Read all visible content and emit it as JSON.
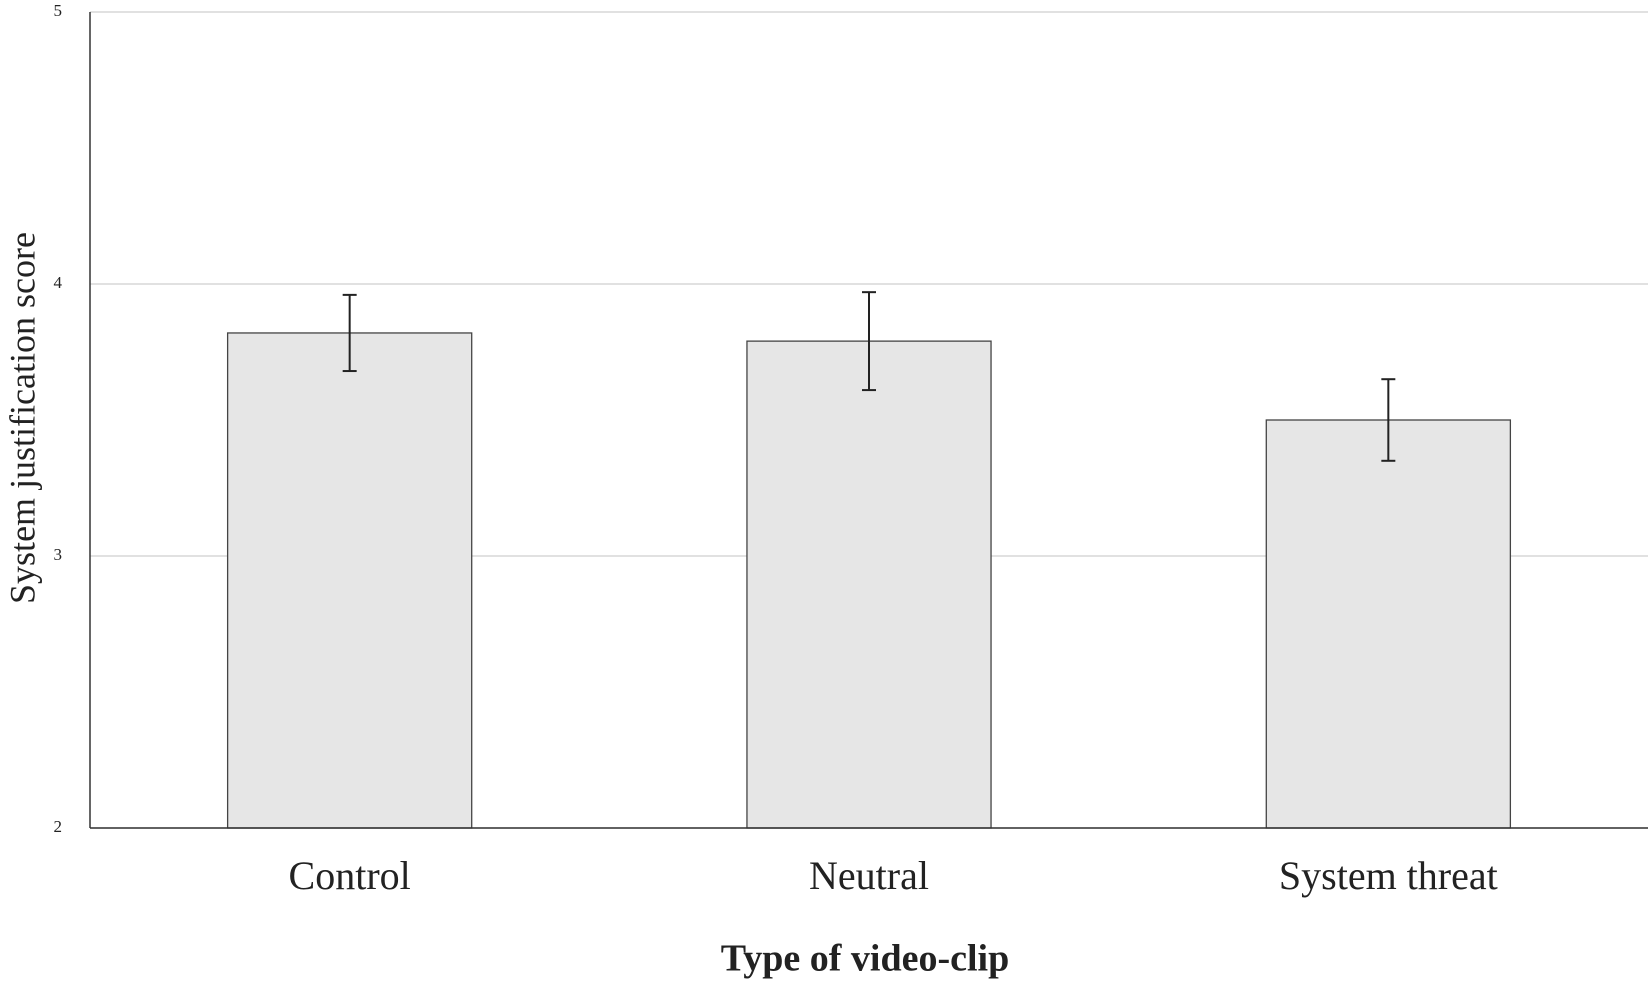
{
  "chart_data": {
    "type": "bar",
    "x_label": "Type of video-clip",
    "y_label": "System justification score",
    "categories": [
      "Control",
      "Neutral",
      "System threat"
    ],
    "values": [
      3.82,
      3.79,
      3.5
    ],
    "errors": [
      0.14,
      0.18,
      0.15
    ],
    "color": "#e6e6e6",
    "ylim": [
      2,
      5
    ],
    "yticks": [
      2,
      3,
      4,
      5
    ],
    "grid": true
  }
}
